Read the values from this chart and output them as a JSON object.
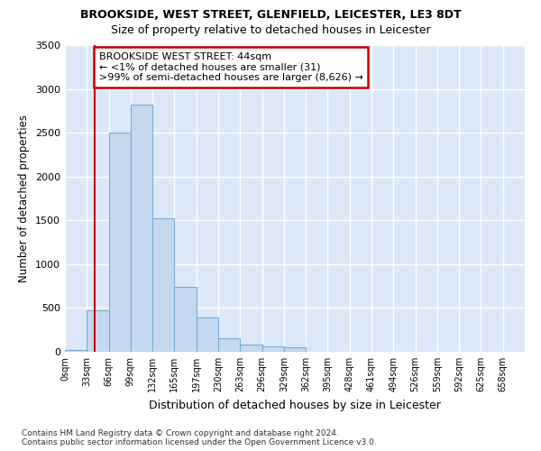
{
  "title": "BROOKSIDE, WEST STREET, GLENFIELD, LEICESTER, LE3 8DT",
  "subtitle": "Size of property relative to detached houses in Leicester",
  "xlabel": "Distribution of detached houses by size in Leicester",
  "ylabel": "Number of detached properties",
  "bar_color": "#c5d8f0",
  "bar_edge_color": "#7aadd4",
  "plot_bg_color": "#dce8f8",
  "fig_bg_color": "#ffffff",
  "grid_color": "#ffffff",
  "bin_labels": [
    "0sqm",
    "33sqm",
    "66sqm",
    "99sqm",
    "132sqm",
    "165sqm",
    "197sqm",
    "230sqm",
    "263sqm",
    "296sqm",
    "329sqm",
    "362sqm",
    "395sqm",
    "428sqm",
    "461sqm",
    "494sqm",
    "526sqm",
    "559sqm",
    "592sqm",
    "625sqm",
    "658sqm"
  ],
  "bar_values": [
    20,
    470,
    2500,
    2820,
    1520,
    740,
    390,
    150,
    85,
    60,
    55,
    0,
    0,
    0,
    0,
    0,
    0,
    0,
    0,
    0,
    0
  ],
  "ylim": [
    0,
    3500
  ],
  "yticks": [
    0,
    500,
    1000,
    1500,
    2000,
    2500,
    3000,
    3500
  ],
  "property_line_x": 1.35,
  "annotation_title": "BROOKSIDE WEST STREET: 44sqm",
  "annotation_line1": "← <1% of detached houses are smaller (31)",
  "annotation_line2": ">99% of semi-detached houses are larger (8,626) →",
  "annotation_box_color": "#ffffff",
  "annotation_box_edge": "#cc0000",
  "footnote1": "Contains HM Land Registry data © Crown copyright and database right 2024.",
  "footnote2": "Contains public sector information licensed under the Open Government Licence v3.0."
}
